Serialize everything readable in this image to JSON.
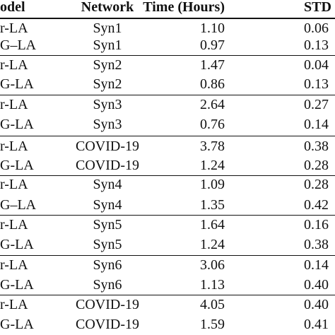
{
  "table": {
    "header": [
      "odel",
      "Network",
      "Time (Hours)",
      "STD E"
    ],
    "rows": [
      [
        "r-LA",
        "Syn1",
        "1.10",
        "0.06"
      ],
      [
        "G–LA",
        "Syn1",
        "0.97",
        "0.13"
      ],
      [
        "r-LA",
        "Syn2",
        "1.47",
        "0.04"
      ],
      [
        "G-LA",
        "Syn2",
        "0.86",
        "0.13"
      ],
      [
        "r-LA",
        "Syn3",
        "2.64",
        "0.27"
      ],
      [
        "G-LA",
        "Syn3",
        "0.76",
        "0.14"
      ],
      [
        "r-LA",
        "COVID-19",
        "3.78",
        "0.38"
      ],
      [
        "G-LA",
        "COVID-19",
        "1.24",
        "0.28"
      ],
      [
        "r-LA",
        "Syn4",
        "1.09",
        "0.28"
      ],
      [
        "G–LA",
        "Syn4",
        "1.35",
        "0.42"
      ],
      [
        "r-LA",
        "Syn5",
        "1.64",
        "0.16"
      ],
      [
        "G-LA",
        "Syn5",
        "1.24",
        "0.38"
      ],
      [
        "r-LA",
        "Syn6",
        "3.06",
        "0.14"
      ],
      [
        "G-LA",
        "Syn6",
        "1.13",
        "0.40"
      ],
      [
        "r-LA",
        "COVID-19",
        "4.05",
        "0.40"
      ],
      [
        "G-LA",
        "COVID-19",
        "1.59",
        "0.41"
      ]
    ]
  }
}
